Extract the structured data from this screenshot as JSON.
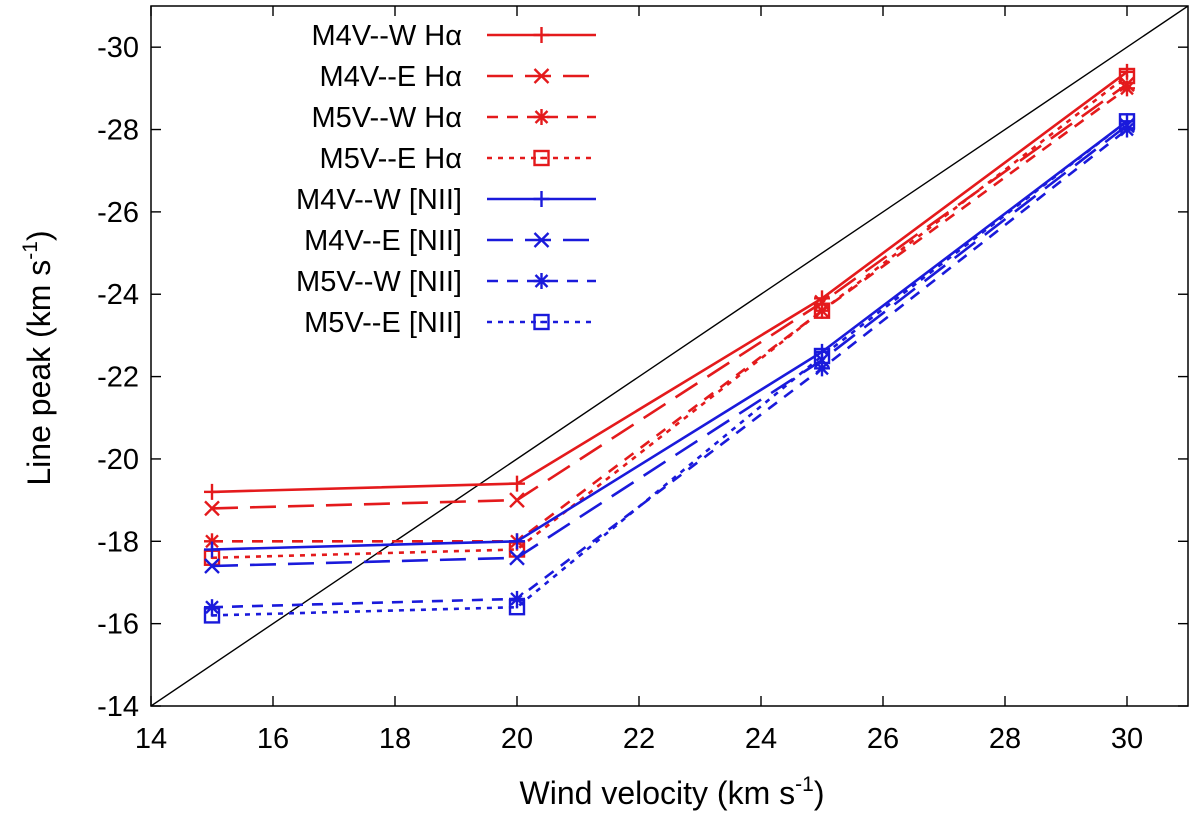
{
  "chart_data": {
    "type": "line",
    "title": "",
    "xlabel": "Wind velocity (km s",
    "xlabel_sup": "-1",
    "xlabel_close": ")",
    "ylabel": "Line peak (km s",
    "ylabel_sup": "-1",
    "ylabel_close": ")",
    "xlim": [
      14,
      31
    ],
    "ylim": [
      -14,
      -31
    ],
    "y_axis_inverted": true,
    "x_ticks": [
      14,
      16,
      18,
      20,
      22,
      24,
      26,
      28,
      30
    ],
    "y_ticks": [
      -14,
      -16,
      -18,
      -20,
      -22,
      -24,
      -26,
      -28,
      -30
    ],
    "x_tick_labels": [
      "14",
      "16",
      "18",
      "20",
      "22",
      "24",
      "26",
      "28",
      "30"
    ],
    "y_tick_labels": [
      "-14",
      "-16",
      "-18",
      "-20",
      "-22",
      "-24",
      "-26",
      "-28",
      "-30"
    ],
    "legend_position": "top-left",
    "grid": false,
    "reference_line": {
      "description": "y = -x",
      "x": [
        14,
        31
      ],
      "y": [
        -14,
        -31
      ],
      "color": "#000000"
    },
    "x": [
      15,
      20,
      25,
      30
    ],
    "series": [
      {
        "name": "M4V--W Hα",
        "values": [
          -19.2,
          -19.4,
          -23.9,
          -29.4
        ],
        "color": "#e41a1c",
        "dash": "solid",
        "marker": "plus"
      },
      {
        "name": "M4V--E Hα",
        "values": [
          -18.8,
          -19.0,
          -23.8,
          -29.1
        ],
        "color": "#e41a1c",
        "dash": "long",
        "marker": "cross"
      },
      {
        "name": "M5V--W Hα",
        "values": [
          -18.0,
          -18.0,
          -23.6,
          -29.0
        ],
        "color": "#e41a1c",
        "dash": "short",
        "marker": "star"
      },
      {
        "name": "M5V--E Hα",
        "values": [
          -17.6,
          -17.8,
          -23.6,
          -29.3
        ],
        "color": "#e41a1c",
        "dash": "dotted",
        "marker": "square"
      },
      {
        "name": "M4V--W [NII]",
        "values": [
          -17.8,
          -18.0,
          -22.6,
          -28.2
        ],
        "color": "#1a1adb",
        "dash": "solid",
        "marker": "plus"
      },
      {
        "name": "M4V--E [NII]",
        "values": [
          -17.4,
          -17.6,
          -22.4,
          -28.1
        ],
        "color": "#1a1adb",
        "dash": "long",
        "marker": "cross"
      },
      {
        "name": "M5V--W [NII]",
        "values": [
          -16.4,
          -16.6,
          -22.2,
          -28.0
        ],
        "color": "#1a1adb",
        "dash": "short",
        "marker": "star"
      },
      {
        "name": "M5V--E [NII]",
        "values": [
          -16.2,
          -16.4,
          -22.5,
          -28.2
        ],
        "color": "#1a1adb",
        "dash": "dotted",
        "marker": "square"
      }
    ]
  }
}
